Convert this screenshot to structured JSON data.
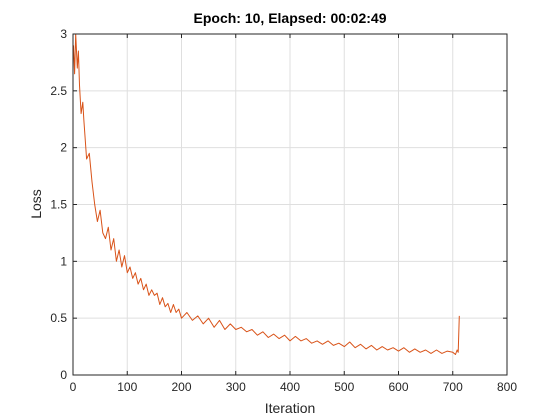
{
  "chart_data": {
    "type": "line",
    "title": "Epoch: 10, Elapsed: 00:02:49",
    "xlabel": "Iteration",
    "ylabel": "Loss",
    "xlim": [
      0,
      800
    ],
    "ylim": [
      0,
      3
    ],
    "xticks": [
      0,
      100,
      200,
      300,
      400,
      500,
      600,
      700,
      800
    ],
    "yticks": [
      0,
      0.5,
      1,
      1.5,
      2,
      2.5,
      3
    ],
    "xtick_labels": [
      "0",
      "100",
      "200",
      "300",
      "400",
      "500",
      "600",
      "700",
      "800"
    ],
    "ytick_labels": [
      "0",
      "0.5",
      "1",
      "1.5",
      "2",
      "2.5",
      "3"
    ],
    "grid": true,
    "series": [
      {
        "color": "#d95319",
        "x": [
          1,
          3,
          5,
          8,
          10,
          12,
          15,
          18,
          20,
          25,
          30,
          35,
          40,
          45,
          50,
          55,
          60,
          65,
          70,
          75,
          80,
          85,
          90,
          95,
          100,
          105,
          110,
          115,
          120,
          125,
          130,
          135,
          140,
          145,
          150,
          155,
          160,
          165,
          170,
          175,
          180,
          185,
          190,
          195,
          200,
          210,
          220,
          230,
          240,
          250,
          260,
          270,
          280,
          290,
          300,
          310,
          320,
          330,
          340,
          350,
          360,
          370,
          380,
          390,
          400,
          410,
          420,
          430,
          440,
          450,
          460,
          470,
          480,
          490,
          500,
          510,
          520,
          530,
          540,
          550,
          560,
          570,
          580,
          590,
          600,
          610,
          620,
          630,
          640,
          650,
          660,
          670,
          680,
          690,
          700,
          705,
          708,
          710,
          712
        ],
        "y": [
          2.9,
          2.65,
          3.0,
          2.7,
          2.85,
          2.55,
          2.3,
          2.4,
          2.25,
          1.9,
          1.95,
          1.7,
          1.5,
          1.35,
          1.45,
          1.25,
          1.2,
          1.3,
          1.1,
          1.2,
          1.0,
          1.1,
          0.95,
          1.05,
          0.9,
          0.95,
          0.85,
          0.9,
          0.8,
          0.85,
          0.75,
          0.8,
          0.7,
          0.75,
          0.7,
          0.72,
          0.62,
          0.68,
          0.6,
          0.63,
          0.55,
          0.62,
          0.55,
          0.58,
          0.5,
          0.55,
          0.48,
          0.52,
          0.45,
          0.5,
          0.42,
          0.48,
          0.4,
          0.45,
          0.4,
          0.42,
          0.38,
          0.4,
          0.35,
          0.38,
          0.33,
          0.36,
          0.32,
          0.35,
          0.3,
          0.34,
          0.3,
          0.32,
          0.28,
          0.3,
          0.27,
          0.3,
          0.26,
          0.28,
          0.25,
          0.29,
          0.24,
          0.27,
          0.23,
          0.26,
          0.22,
          0.25,
          0.22,
          0.24,
          0.21,
          0.24,
          0.2,
          0.23,
          0.2,
          0.22,
          0.19,
          0.22,
          0.19,
          0.21,
          0.2,
          0.18,
          0.22,
          0.2,
          0.52
        ]
      }
    ]
  }
}
